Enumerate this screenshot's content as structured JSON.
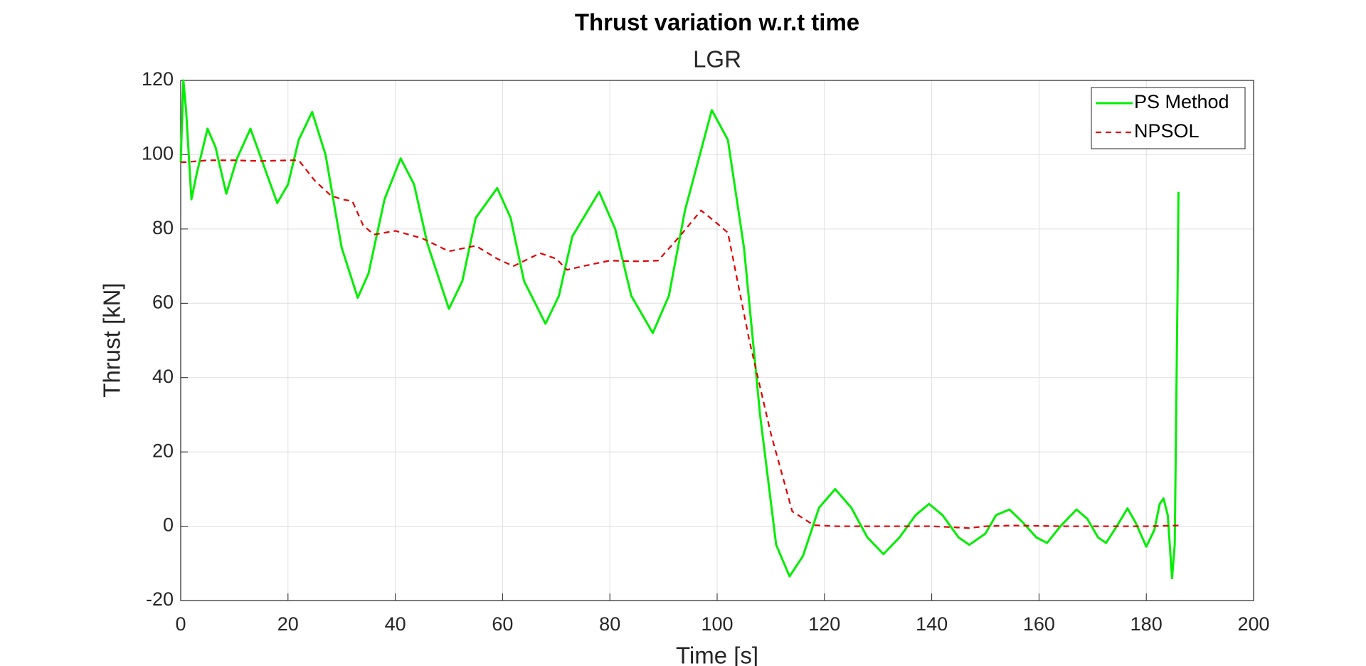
{
  "chart_data": {
    "type": "line",
    "title": "Thrust variation w.r.t time",
    "subtitle": "LGR",
    "x_label": "Time [s]",
    "y_label": "Thrust [kN]",
    "xlim": [
      0,
      200
    ],
    "xticks": [
      0,
      20,
      40,
      60,
      80,
      100,
      120,
      140,
      160,
      180,
      200
    ],
    "ylim": [
      -20,
      120
    ],
    "yticks": [
      -20,
      0,
      20,
      40,
      60,
      80,
      100,
      120
    ],
    "grid": true,
    "legend_position": "upper right",
    "series": [
      {
        "name": "PS Method",
        "color": "#00ee00",
        "linestyle": "solid",
        "x": [
          0,
          0.5,
          1,
          2,
          3,
          5,
          6.5,
          8.5,
          10.5,
          13,
          15.5,
          18,
          20,
          22,
          24.5,
          27,
          30,
          33,
          35,
          38,
          41,
          43.5,
          46,
          50,
          52.5,
          55,
          59,
          61.5,
          64,
          68,
          70.5,
          73,
          78,
          81,
          84,
          88,
          91,
          94,
          99,
          102,
          105,
          108,
          111,
          113.5,
          116,
          119,
          122,
          125,
          128,
          131,
          134,
          137,
          139.5,
          142,
          145,
          147,
          150,
          152,
          154.5,
          157,
          159.5,
          161.5,
          164,
          167,
          169,
          171,
          172.5,
          174.5,
          176.5,
          178,
          180,
          181.5,
          182.5,
          183.2,
          184,
          184.8,
          185.3,
          185.8,
          186
        ],
        "y": [
          98,
          120,
          112,
          88,
          95,
          107,
          102,
          89.5,
          99,
          107,
          97,
          87,
          92,
          104,
          111.5,
          100,
          75,
          61.5,
          68,
          88,
          99,
          92,
          76,
          58.5,
          66,
          83,
          91,
          83,
          66,
          54.5,
          62,
          78,
          90,
          80,
          62,
          52,
          62,
          85,
          112,
          104,
          75,
          30,
          -5,
          -13.5,
          -8,
          5,
          10,
          5,
          -3,
          -7.5,
          -3,
          3,
          6,
          3,
          -3,
          -5,
          -2,
          3,
          4.5,
          1,
          -3,
          -4.5,
          0,
          4.5,
          2,
          -3,
          -4.5,
          0,
          4.8,
          1,
          -5.5,
          -1,
          6,
          7.5,
          3,
          -14,
          -5,
          60,
          90
        ]
      },
      {
        "name": "NPSOL",
        "color": "#e00000",
        "linestyle": "dashed",
        "x": [
          0,
          1,
          5,
          10,
          15,
          20,
          22,
          25,
          28,
          30,
          32,
          34,
          36,
          40,
          45,
          50,
          55,
          59,
          62,
          67,
          70,
          72,
          75,
          80,
          85,
          89,
          93,
          97,
          100,
          102,
          106,
          110,
          114,
          118,
          122,
          130,
          140,
          147,
          150,
          155,
          165,
          175,
          180,
          186
        ],
        "y": [
          98,
          98,
          98.5,
          98.5,
          98.3,
          98.5,
          98.5,
          93,
          89,
          88,
          87.5,
          81,
          78.5,
          79.5,
          77.5,
          74,
          75.5,
          72,
          70,
          73.5,
          72,
          69,
          70,
          71.5,
          71.3,
          71.5,
          78,
          85,
          81.5,
          79,
          50,
          25,
          4,
          0.3,
          0,
          0,
          0,
          -0.5,
          0,
          0.2,
          0,
          0,
          0,
          0.2
        ]
      }
    ]
  }
}
